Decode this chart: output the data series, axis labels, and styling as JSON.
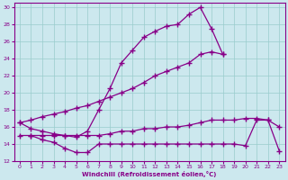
{
  "xlabel": "Windchill (Refroidissement éolien,°C)",
  "bg_color": "#cce8ee",
  "line_color": "#880088",
  "grid_color": "#99cccc",
  "xlim": [
    -0.5,
    23.5
  ],
  "ylim": [
    12,
    30.5
  ],
  "yticks": [
    12,
    14,
    16,
    18,
    20,
    22,
    24,
    26,
    28,
    30
  ],
  "xticks": [
    0,
    1,
    2,
    3,
    4,
    5,
    6,
    7,
    8,
    9,
    10,
    11,
    12,
    13,
    14,
    15,
    16,
    17,
    18,
    19,
    20,
    21,
    22,
    23
  ],
  "line1_x": [
    0,
    1,
    2,
    3,
    4,
    5,
    6,
    7,
    8,
    9,
    10,
    11,
    12,
    13,
    14,
    15,
    16,
    17,
    18
  ],
  "line1_y": [
    16.5,
    15.8,
    15.5,
    15.2,
    15.0,
    14.8,
    15.5,
    18.0,
    20.5,
    23.5,
    25.0,
    26.5,
    27.2,
    27.8,
    28.0,
    29.2,
    30.0,
    27.5,
    24.5
  ],
  "line2_x": [
    0,
    1,
    2,
    3,
    4,
    5,
    6,
    7,
    8,
    9,
    10,
    11,
    12,
    13,
    14,
    15,
    16,
    17,
    18
  ],
  "line2_y": [
    16.5,
    16.8,
    17.2,
    17.5,
    17.8,
    18.2,
    18.5,
    19.0,
    19.5,
    20.0,
    20.5,
    21.2,
    22.0,
    22.5,
    23.0,
    23.5,
    24.5,
    24.8,
    24.5
  ],
  "line3_x": [
    0,
    1,
    2,
    3,
    4,
    5,
    6,
    7,
    8,
    9,
    10,
    11,
    12,
    13,
    14,
    15,
    16,
    17,
    18,
    19,
    20,
    21,
    22,
    23
  ],
  "line3_y": [
    15.0,
    15.0,
    15.0,
    15.0,
    15.0,
    15.0,
    15.0,
    15.0,
    15.2,
    15.5,
    15.5,
    15.8,
    15.8,
    16.0,
    16.0,
    16.2,
    16.5,
    16.8,
    16.8,
    16.8,
    17.0,
    17.0,
    16.8,
    16.0
  ],
  "line4_x": [
    1,
    2,
    3,
    4,
    5,
    6,
    7,
    8,
    9,
    10,
    11,
    12,
    13,
    14,
    15,
    16,
    17,
    18,
    19,
    20,
    21,
    22,
    23
  ],
  "line4_y": [
    15.0,
    14.5,
    14.2,
    13.5,
    13.0,
    13.0,
    14.0,
    14.0,
    14.0,
    14.0,
    14.0,
    14.0,
    14.0,
    14.0,
    14.0,
    14.0,
    14.0,
    14.0,
    14.0,
    13.8,
    16.8,
    16.8,
    13.2
  ]
}
